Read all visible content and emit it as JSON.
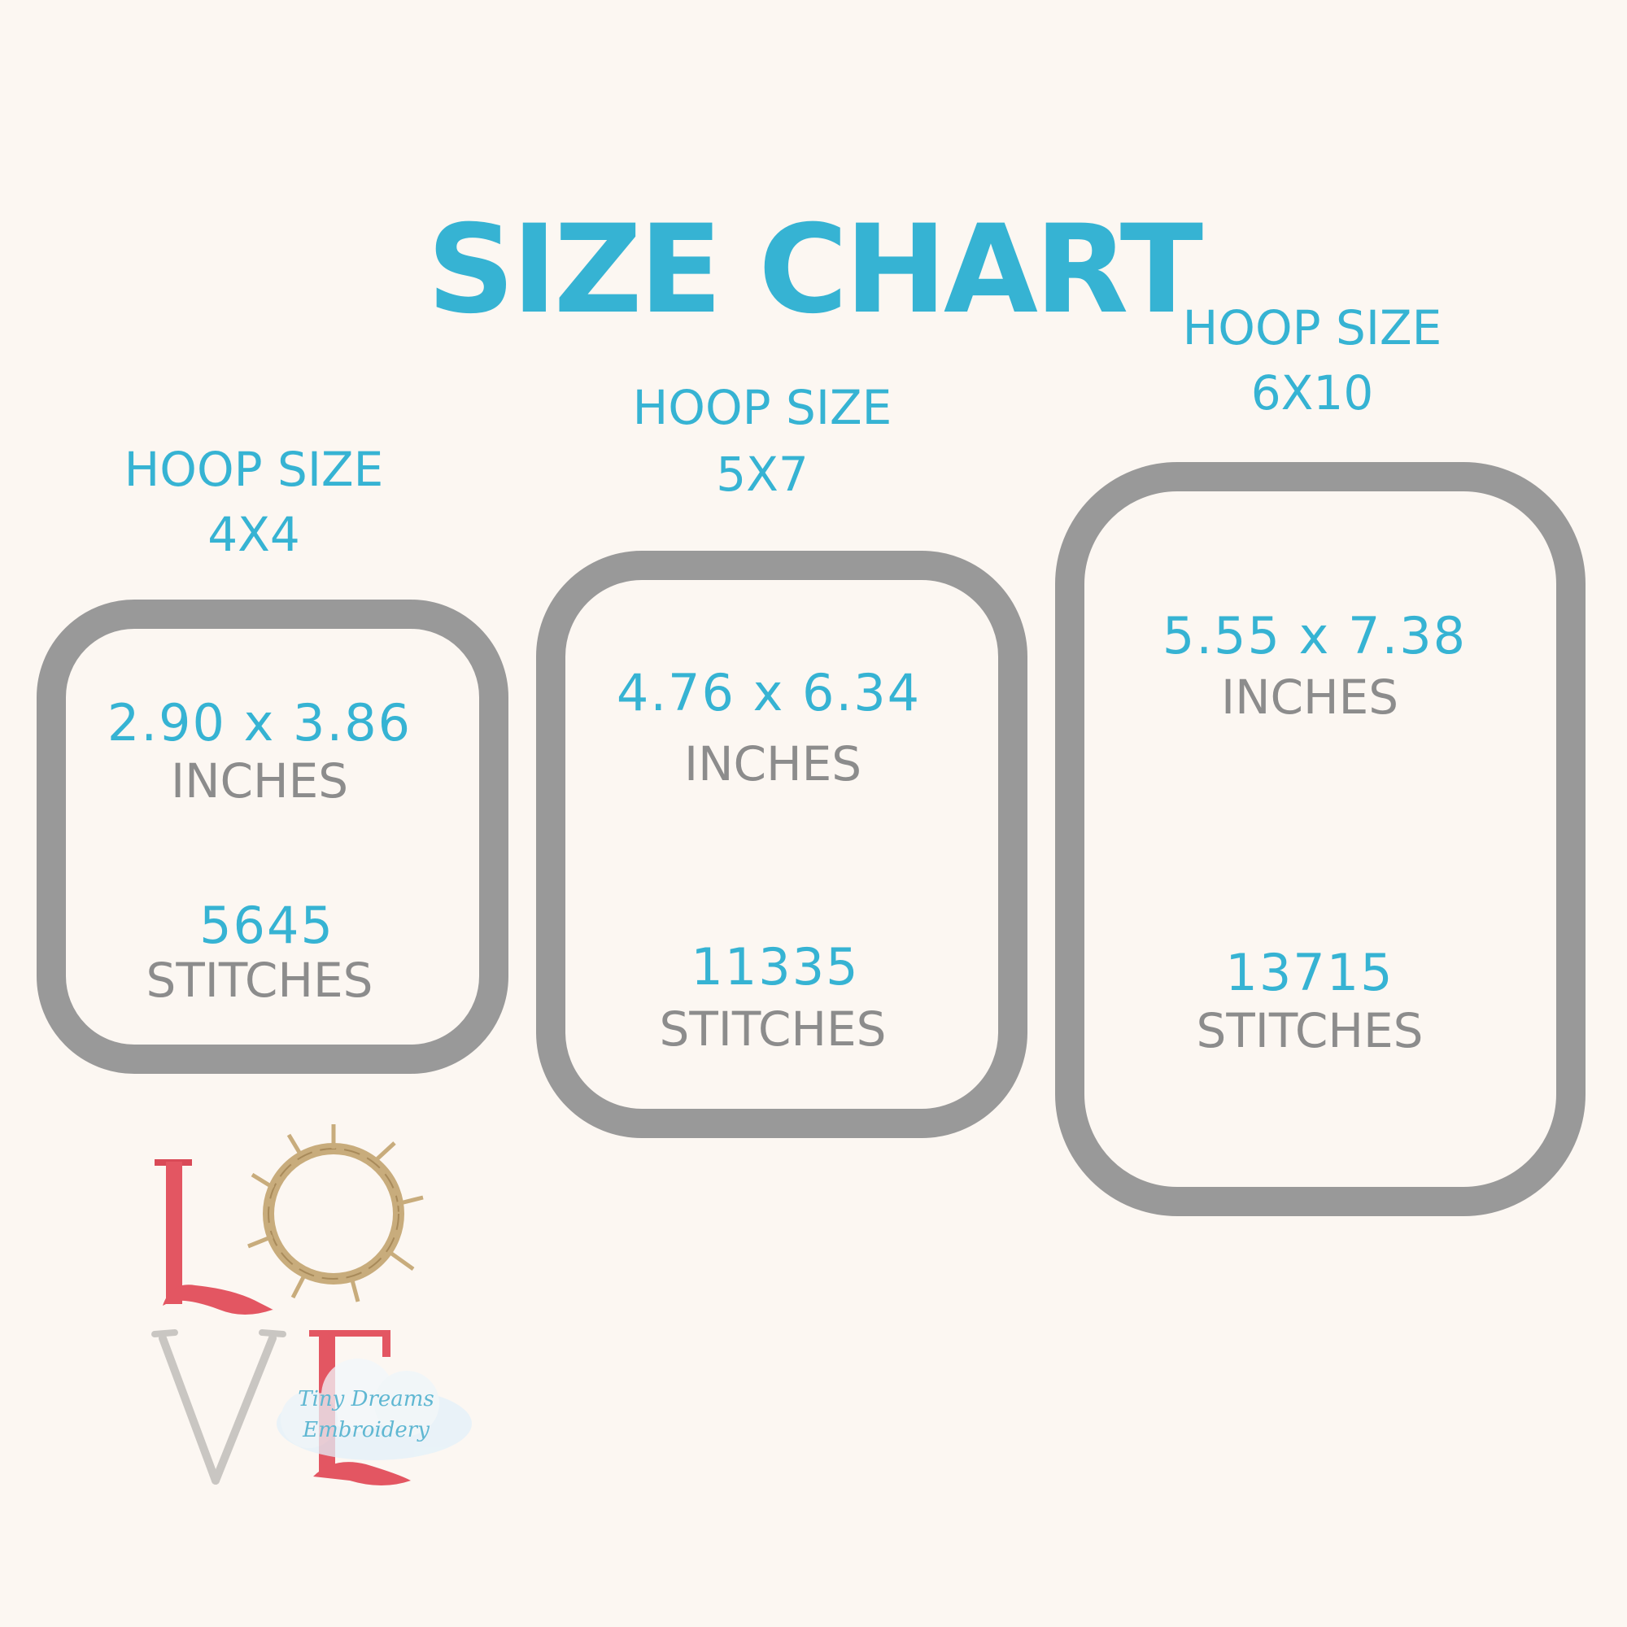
{
  "title": "SIZE CHART",
  "colors": {
    "accent": "#36b3d3",
    "text_gray": "#8c8c8c",
    "hoop_frame": "#999999",
    "background": "#fcf7f2"
  },
  "hoops": [
    {
      "label": "HOOP SIZE",
      "size": "4X4",
      "dimensions": "2.90 x 3.86",
      "dimension_unit": "INCHES",
      "stitches": "5645",
      "stitch_unit": "STITCHES"
    },
    {
      "label": "HOOP SIZE",
      "size": "5X7",
      "dimensions": "4.76 x 6.34",
      "dimension_unit": "INCHES",
      "stitches": "11335",
      "stitch_unit": "STITCHES"
    },
    {
      "label": "HOOP SIZE",
      "size": "6X10",
      "dimensions": "5.55 x 7.38",
      "dimension_unit": "INCHES",
      "stitches": "13715",
      "stitch_unit": "STITCHES"
    }
  ],
  "design_preview": {
    "letters": "LOVE",
    "watermark": "Tiny Dreams Embroidery"
  }
}
